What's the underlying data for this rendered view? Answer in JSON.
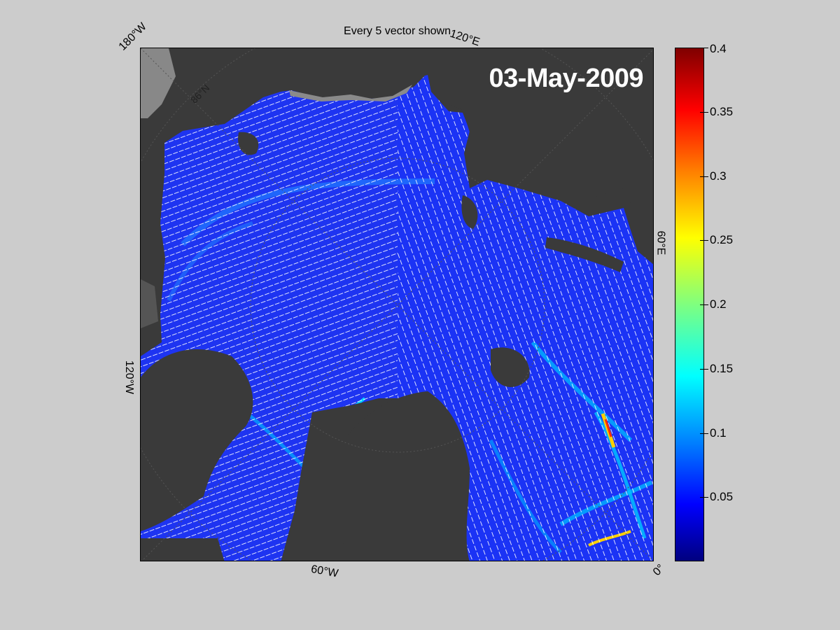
{
  "figure": {
    "title": "Every 5 vector shown",
    "date": "03-May-2009"
  },
  "map": {
    "lon_labels": {
      "top_left": "180°W",
      "top": "120°E",
      "right": "60°E",
      "left": "120°W",
      "bottom": "60°W",
      "bottom_right": "0°"
    },
    "lat_label": "86°N"
  },
  "colorbar": {
    "min": 0,
    "max": 0.4,
    "colormap": "jet",
    "ticks": [
      "0.4",
      "0.35",
      "0.3",
      "0.25",
      "0.2",
      "0.15",
      "0.1",
      "0.05"
    ],
    "tick_values": [
      0.4,
      0.35,
      0.3,
      0.25,
      0.2,
      0.15,
      0.1,
      0.05
    ]
  },
  "colors": {
    "background": "#cccccc",
    "land": "#3a3a3a",
    "ice_low": "#1a2eff",
    "ice_mid": "#00a6ff",
    "ice_high": "#ff0000",
    "vectors": "#ffffff"
  }
}
